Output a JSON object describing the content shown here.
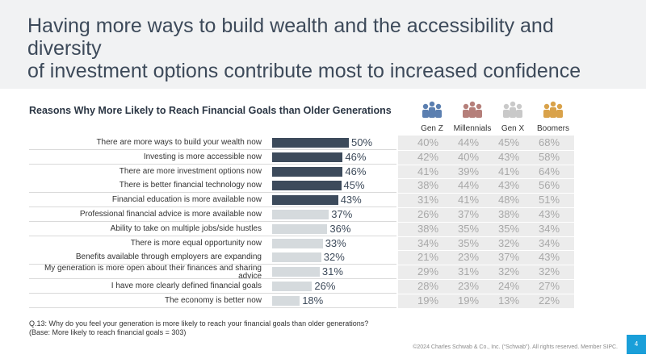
{
  "slide": {
    "title_line1": "Having more ways to build wealth and the accessibility and diversity",
    "title_line2": "of investment options contribute most to increased confidence",
    "footnote_line1": "Q.13:  Why do you feel your generation is more likely to reach your financial goals than older generations?",
    "footnote_line2": "(Base: More likely to reach financial goals = 303)",
    "copyright": "©2024 Charles Schwab & Co., Inc. (“Schwab”). All rights reserved. Member SIPC.",
    "page_number": "4"
  },
  "colors": {
    "dark_bar": "#3c4a5b",
    "light_bar": "#d5dadd",
    "genz": "#5b7fb0",
    "millennials": "#b57f7a",
    "genx": "#c9c9c9",
    "boomers": "#d9a24a"
  },
  "chart_data": {
    "type": "bar",
    "title": "Reasons Why More Likely to Reach Financial Goals than Older Generations",
    "categories": [
      "There are more ways to build your wealth now",
      "Investing is more accessible now",
      "There are more investment options now",
      "There is better financial technology now",
      "Financial education is more available now",
      "Professional financial advice is more available now",
      "Ability to take on multiple jobs/side hustles",
      "There is more equal opportunity now",
      "Benefits available through employers are expanding",
      "My generation is more open about their finances and sharing advice",
      "I have more clearly defined financial goals",
      "The economy is better now"
    ],
    "values": [
      50,
      46,
      46,
      45,
      43,
      37,
      36,
      33,
      32,
      31,
      26,
      18
    ],
    "value_labels": [
      "50%",
      "46%",
      "46%",
      "45%",
      "43%",
      "37%",
      "36%",
      "33%",
      "32%",
      "31%",
      "26%",
      "18%"
    ],
    "highlight_top": 5,
    "generations": [
      "Gen Z",
      "Millennials",
      "Gen X",
      "Boomers"
    ],
    "generation_values": [
      [
        "40%",
        "44%",
        "45%",
        "68%"
      ],
      [
        "42%",
        "40%",
        "43%",
        "58%"
      ],
      [
        "41%",
        "39%",
        "41%",
        "64%"
      ],
      [
        "38%",
        "44%",
        "43%",
        "56%"
      ],
      [
        "31%",
        "41%",
        "48%",
        "51%"
      ],
      [
        "26%",
        "37%",
        "38%",
        "43%"
      ],
      [
        "38%",
        "35%",
        "35%",
        "34%"
      ],
      [
        "34%",
        "35%",
        "32%",
        "34%"
      ],
      [
        "21%",
        "23%",
        "37%",
        "43%"
      ],
      [
        "29%",
        "31%",
        "32%",
        "32%"
      ],
      [
        "28%",
        "23%",
        "24%",
        "27%"
      ],
      [
        "19%",
        "19%",
        "13%",
        "22%"
      ]
    ],
    "xlim": [
      0,
      100
    ]
  }
}
